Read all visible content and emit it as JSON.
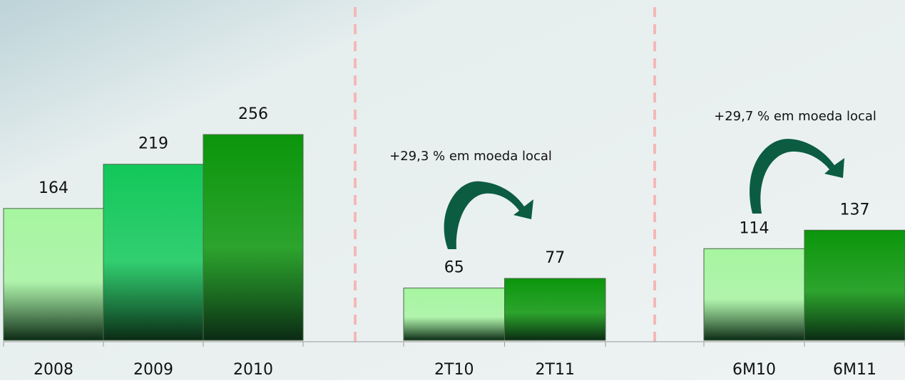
{
  "chart_data": [
    {
      "type": "bar",
      "categories": [
        "2008",
        "2009",
        "2010"
      ],
      "values": [
        164,
        219,
        256
      ],
      "colors": [
        "#a6f5a0",
        "#12c85a",
        "#0b960b"
      ]
    },
    {
      "type": "bar",
      "categories": [
        "2T10",
        "2T11"
      ],
      "values": [
        65,
        77
      ],
      "colors": [
        "#a6f5a0",
        "#0b960b"
      ],
      "annotation": "+29,3 % em moeda local"
    },
    {
      "type": "bar",
      "categories": [
        "6M10",
        "6M11"
      ],
      "values": [
        114,
        137
      ],
      "colors": [
        "#a6f5a0",
        "#0b960b"
      ],
      "annotation": "+29,7 % em moeda local"
    }
  ]
}
